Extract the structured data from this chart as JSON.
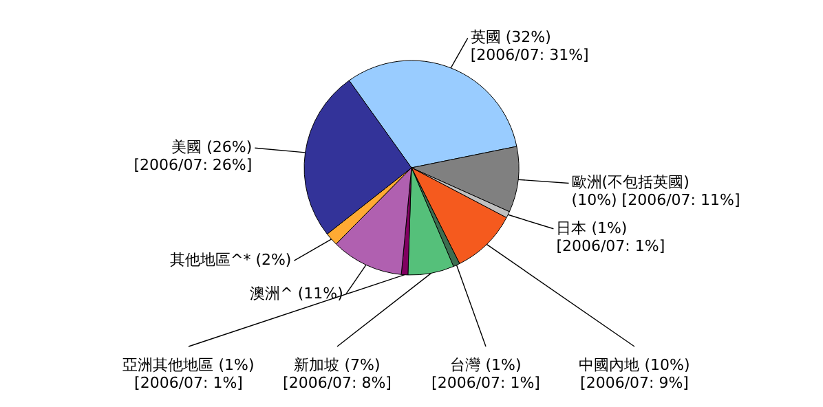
{
  "chart_data": {
    "type": "pie",
    "categories": [
      "英國",
      "歐洲(不包括英國)",
      "日本",
      "中國內地",
      "台灣",
      "新加坡",
      "亞洲其他地區",
      "澳洲^",
      "其他地區^*",
      "美國"
    ],
    "values": [
      32,
      10,
      1,
      10,
      1,
      7,
      1,
      11,
      2,
      26
    ],
    "colors": [
      "#99ccff",
      "#808080",
      "#c0c0c0",
      "#f55a1e",
      "#3c6e50",
      "#55c07a",
      "#800060",
      "#b060b0",
      "#ffaa33",
      "#333399"
    ],
    "value_labels": [
      "(32%)\n[2006/07: 31%]",
      "\n(10%) [2006/07: 11%]",
      "(1%)\n[2006/07: 1%]",
      "(10%)\n[2006/07: 9%]",
      "(1%)\n[2006/07: 1%]",
      "(7%)\n[2006/07: 8%]",
      "(1%)\n[2006/07: 1%]",
      "(11%)",
      "(2%)",
      "(26%)\n[2006/07: 26%]"
    ]
  }
}
